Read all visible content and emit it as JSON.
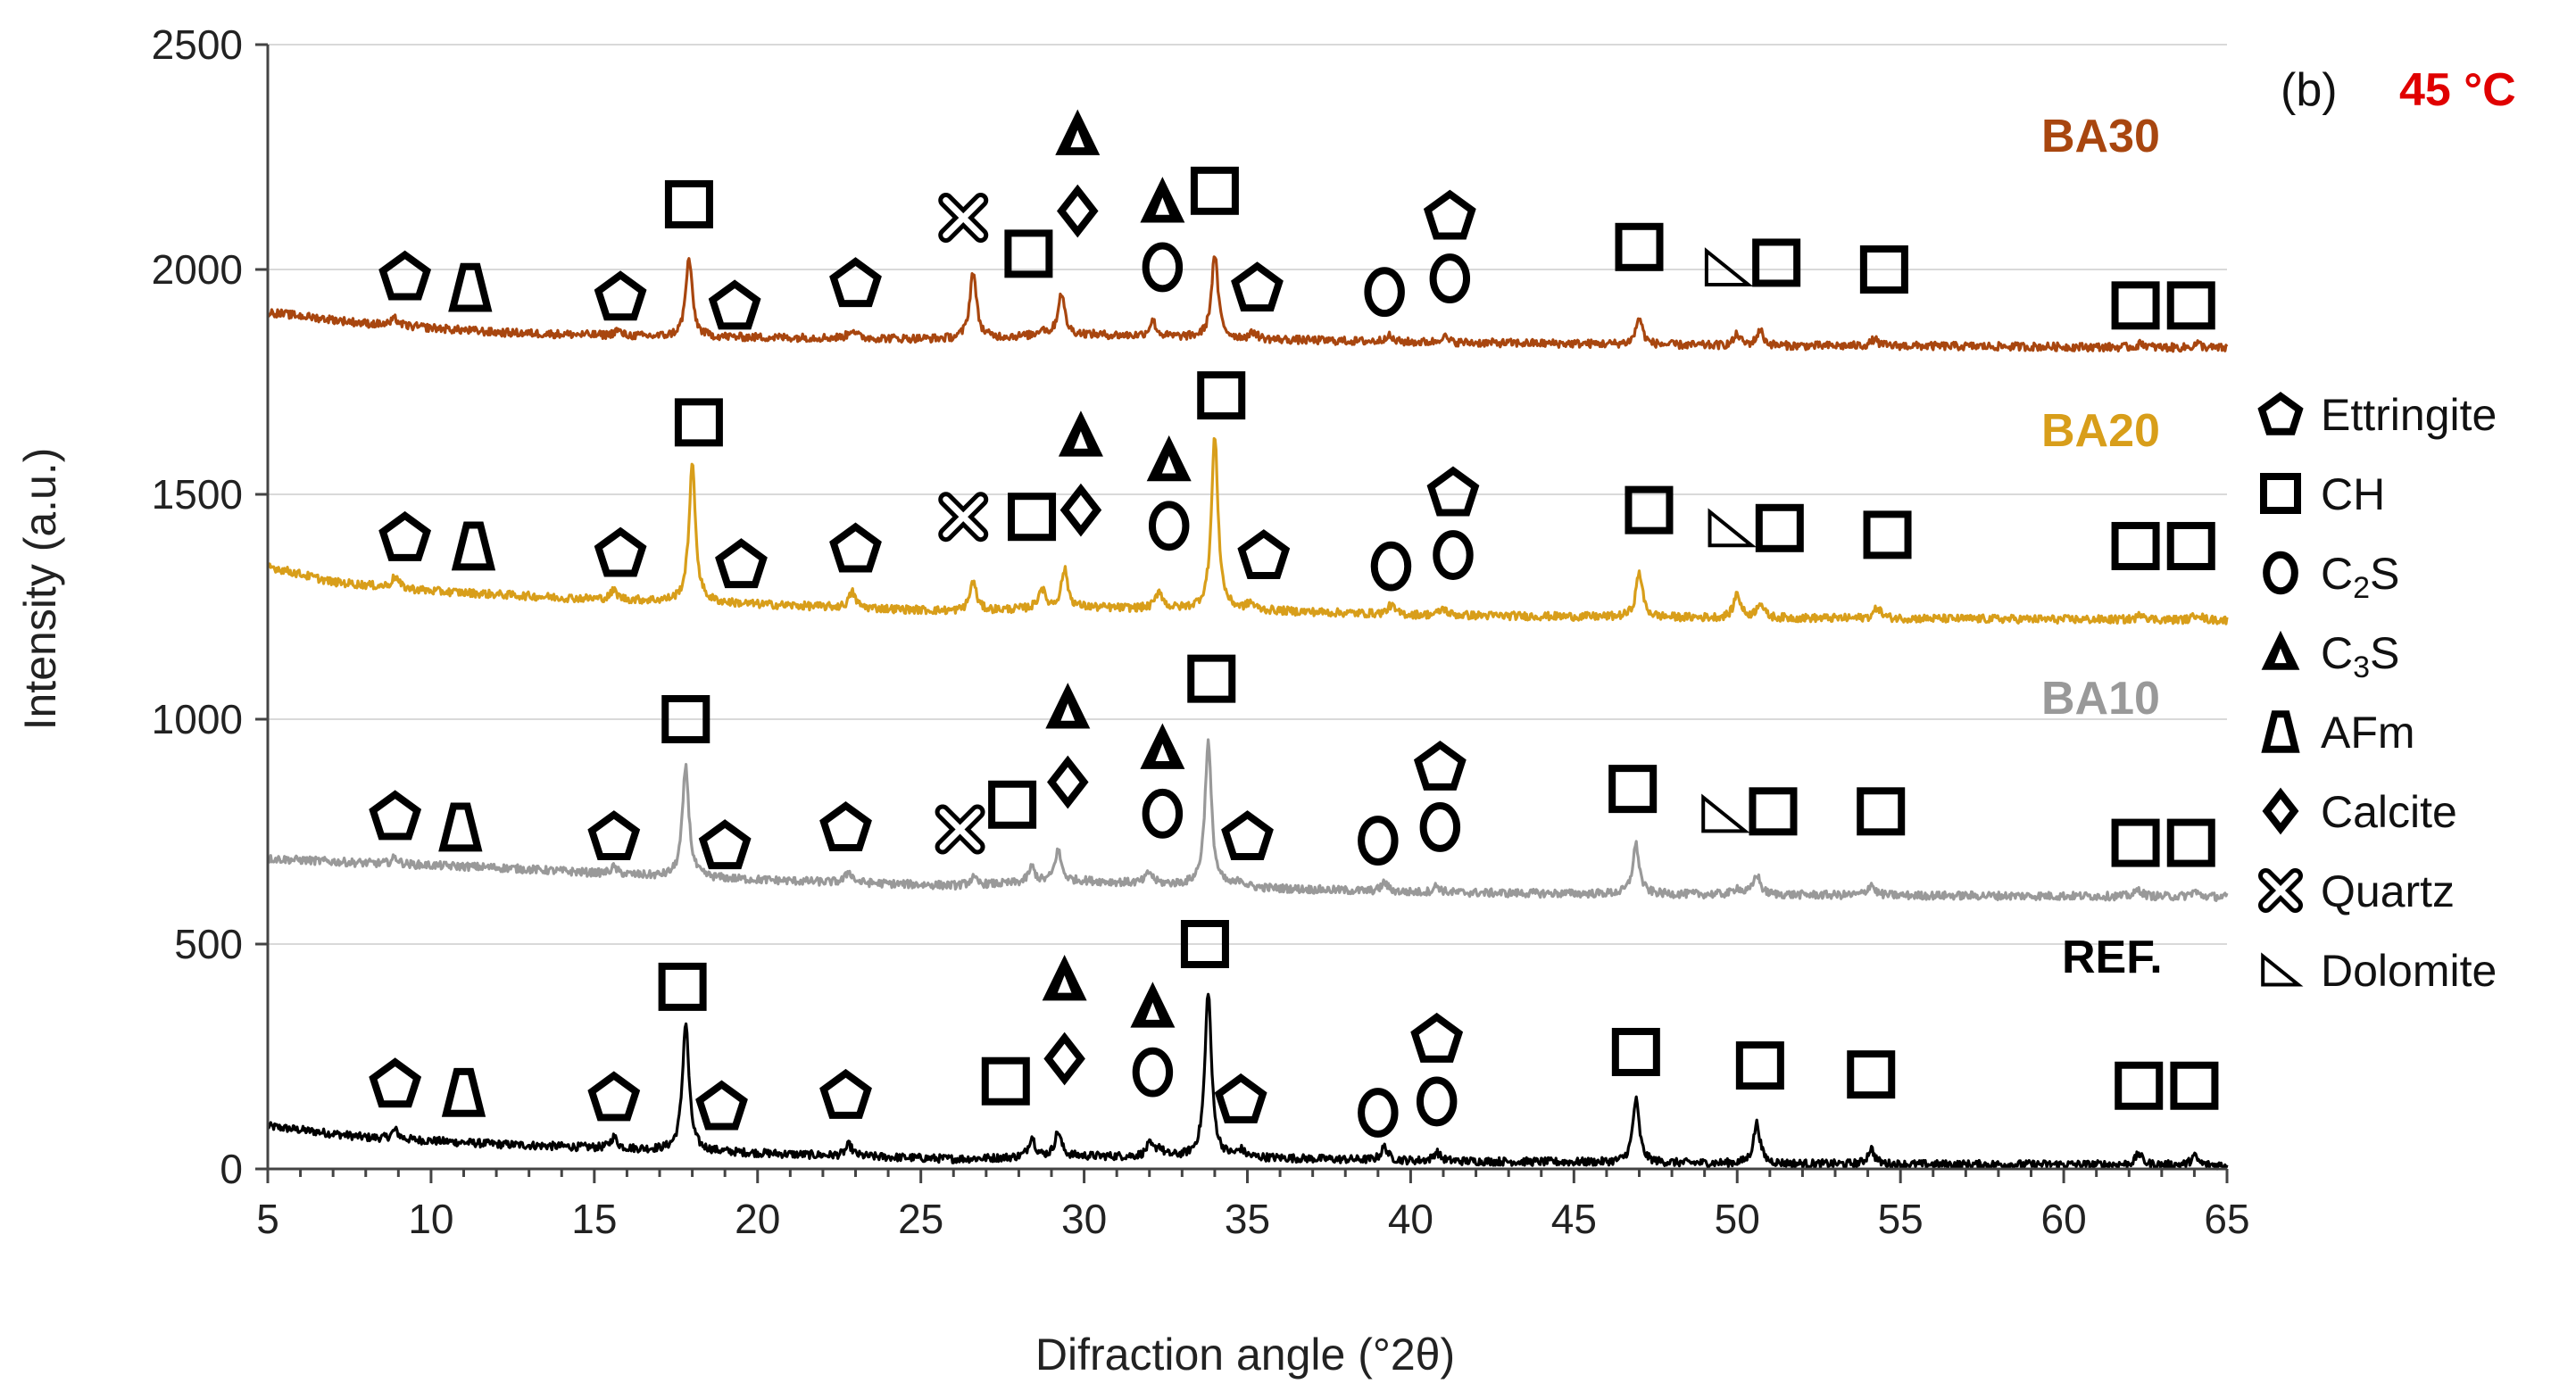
{
  "chart_data": {
    "type": "line",
    "title": "",
    "panel_label": "(b)",
    "temperature_label": "45 °C",
    "xlabel": "Difraction angle (°2θ)",
    "ylabel": "Intensity (a.u.)",
    "xlim": [
      5,
      65
    ],
    "ylim": [
      0,
      2500
    ],
    "x_ticks": [
      "5",
      "10",
      "15",
      "20",
      "25",
      "30",
      "35",
      "40",
      "45",
      "50",
      "55",
      "60",
      "65"
    ],
    "y_ticks": [
      "0",
      "500",
      "1000",
      "1500",
      "2000",
      "2500"
    ],
    "grid": "horizontal",
    "colors": {
      "REF.": "#000000",
      "BA10": "#999999",
      "BA20": "#D89E1A",
      "BA30": "#A8460F",
      "temperature": "#E00000"
    },
    "series": [
      {
        "name": "REF.",
        "baseline": [
          [
            5,
            95
          ],
          [
            8,
            70
          ],
          [
            12,
            55
          ],
          [
            17,
            42
          ],
          [
            22,
            30
          ],
          [
            26,
            22
          ],
          [
            30,
            28
          ],
          [
            35,
            25
          ],
          [
            40,
            18
          ],
          [
            45,
            15
          ],
          [
            50,
            12
          ],
          [
            55,
            10
          ],
          [
            60,
            10
          ],
          [
            65,
            8
          ]
        ],
        "peaks": [
          [
            8.9,
            20
          ],
          [
            15.6,
            25
          ],
          [
            17.8,
            285
          ],
          [
            22.8,
            25
          ],
          [
            28.4,
            45
          ],
          [
            29.2,
            55
          ],
          [
            32.0,
            25
          ],
          [
            32.3,
            20
          ],
          [
            33.8,
            370
          ],
          [
            34.8,
            15
          ],
          [
            39.2,
            30
          ],
          [
            40.8,
            20
          ],
          [
            46.9,
            140
          ],
          [
            50.6,
            90
          ],
          [
            54.1,
            35
          ],
          [
            62.3,
            25
          ],
          [
            64.0,
            20
          ]
        ]
      },
      {
        "name": "BA10",
        "baseline": [
          [
            5,
            690
          ],
          [
            8,
            680
          ],
          [
            12,
            670
          ],
          [
            17,
            650
          ],
          [
            22,
            638
          ],
          [
            26,
            630
          ],
          [
            30,
            640
          ],
          [
            35,
            625
          ],
          [
            40,
            615
          ],
          [
            45,
            612
          ],
          [
            50,
            610
          ],
          [
            55,
            608
          ],
          [
            60,
            607
          ],
          [
            65,
            605
          ]
        ],
        "peaks": [
          [
            8.9,
            15
          ],
          [
            15.6,
            15
          ],
          [
            17.8,
            245
          ],
          [
            22.8,
            25
          ],
          [
            26.6,
            15
          ],
          [
            28.4,
            35
          ],
          [
            29.2,
            70
          ],
          [
            32.0,
            25
          ],
          [
            33.8,
            320
          ],
          [
            34.8,
            15
          ],
          [
            39.2,
            20
          ],
          [
            40.8,
            15
          ],
          [
            46.9,
            110
          ],
          [
            50.0,
            15
          ],
          [
            50.6,
            45
          ],
          [
            54.1,
            25
          ],
          [
            62.3,
            15
          ],
          [
            64.0,
            12
          ]
        ]
      },
      {
        "name": "BA20",
        "baseline": [
          [
            5,
            1340
          ],
          [
            7,
            1305
          ],
          [
            10,
            1285
          ],
          [
            14,
            1270
          ],
          [
            18,
            1260
          ],
          [
            22,
            1250
          ],
          [
            26,
            1240
          ],
          [
            30,
            1248
          ],
          [
            35,
            1242
          ],
          [
            40,
            1232
          ],
          [
            45,
            1228
          ],
          [
            50,
            1225
          ],
          [
            55,
            1224
          ],
          [
            60,
            1222
          ],
          [
            65,
            1220
          ]
        ],
        "peaks": [
          [
            8.9,
            25
          ],
          [
            15.6,
            20
          ],
          [
            18.0,
            305
          ],
          [
            22.9,
            35
          ],
          [
            26.6,
            65
          ],
          [
            28.7,
            45
          ],
          [
            29.4,
            85
          ],
          [
            32.3,
            40
          ],
          [
            34.0,
            385
          ],
          [
            35.1,
            15
          ],
          [
            39.4,
            20
          ],
          [
            41.0,
            15
          ],
          [
            47.0,
            100
          ],
          [
            50.0,
            55
          ],
          [
            50.7,
            35
          ],
          [
            54.3,
            25
          ],
          [
            62.4,
            15
          ],
          [
            64.1,
            15
          ]
        ]
      },
      {
        "name": "BA30",
        "baseline": [
          [
            5,
            1905
          ],
          [
            8,
            1880
          ],
          [
            12,
            1860
          ],
          [
            17,
            1850
          ],
          [
            22,
            1848
          ],
          [
            26,
            1845
          ],
          [
            30,
            1855
          ],
          [
            35,
            1845
          ],
          [
            40,
            1838
          ],
          [
            45,
            1835
          ],
          [
            50,
            1830
          ],
          [
            55,
            1830
          ],
          [
            60,
            1828
          ],
          [
            65,
            1825
          ]
        ],
        "peaks": [
          [
            8.9,
            15
          ],
          [
            15.7,
            12
          ],
          [
            17.9,
            175
          ],
          [
            22.9,
            20
          ],
          [
            26.6,
            150
          ],
          [
            28.7,
            15
          ],
          [
            29.3,
            95
          ],
          [
            32.1,
            35
          ],
          [
            34.0,
            185
          ],
          [
            35.2,
            15
          ],
          [
            39.3,
            15
          ],
          [
            41.0,
            15
          ],
          [
            47.0,
            60
          ],
          [
            50.0,
            25
          ],
          [
            50.7,
            35
          ],
          [
            54.2,
            15
          ],
          [
            62.4,
            10
          ],
          [
            64.1,
            10
          ]
        ]
      }
    ],
    "series_labels": [
      {
        "text": "BA30",
        "color": "#A8460F"
      },
      {
        "text": "BA20",
        "color": "#D89E1A"
      },
      {
        "text": "BA10",
        "color": "#999999"
      },
      {
        "text": "REF.",
        "color": "#000000"
      }
    ],
    "legend": {
      "position": "right",
      "entries": [
        {
          "symbol": "pentagon",
          "label": "Ettringite"
        },
        {
          "symbol": "square",
          "label": "CH"
        },
        {
          "symbol": "circle",
          "label": "C2S",
          "base": "C",
          "sub": "2",
          "tail": "S"
        },
        {
          "symbol": "triangle",
          "label": "C3S",
          "base": "C",
          "sub": "3",
          "tail": "S"
        },
        {
          "symbol": "trapezoid",
          "label": "AFm"
        },
        {
          "symbol": "diamond",
          "label": "Calcite"
        },
        {
          "symbol": "quartz-x",
          "label": "Quartz"
        },
        {
          "symbol": "right-triangle",
          "label": "Dolomite"
        }
      ]
    },
    "phase_markers": [
      {
        "series": "REF.",
        "marks": [
          {
            "symbol": "pentagon",
            "x": 8.9,
            "y": 190
          },
          {
            "symbol": "trapezoid",
            "x": 11.0,
            "y": 170
          },
          {
            "symbol": "pentagon",
            "x": 15.6,
            "y": 160
          },
          {
            "symbol": "square",
            "x": 17.7,
            "y": 405
          },
          {
            "symbol": "pentagon",
            "x": 18.9,
            "y": 140
          },
          {
            "symbol": "pentagon",
            "x": 22.7,
            "y": 165
          },
          {
            "symbol": "square",
            "x": 27.6,
            "y": 195
          },
          {
            "symbol": "triangle",
            "x": 29.4,
            "y": 420
          },
          {
            "symbol": "diamond",
            "x": 29.4,
            "y": 245
          },
          {
            "symbol": "triangle",
            "x": 32.1,
            "y": 360
          },
          {
            "symbol": "circle",
            "x": 32.1,
            "y": 215
          },
          {
            "symbol": "square",
            "x": 33.7,
            "y": 500
          },
          {
            "symbol": "pentagon",
            "x": 34.8,
            "y": 155
          },
          {
            "symbol": "circle",
            "x": 39.0,
            "y": 125
          },
          {
            "symbol": "pentagon",
            "x": 40.8,
            "y": 290
          },
          {
            "symbol": "circle",
            "x": 40.8,
            "y": 150
          },
          {
            "symbol": "square",
            "x": 46.9,
            "y": 260
          },
          {
            "symbol": "square",
            "x": 50.7,
            "y": 230
          },
          {
            "symbol": "square",
            "x": 54.1,
            "y": 210
          },
          {
            "symbol": "square",
            "x": 62.3,
            "y": 185
          },
          {
            "symbol": "square",
            "x": 64.0,
            "y": 185
          }
        ]
      },
      {
        "series": "BA10",
        "marks": [
          {
            "symbol": "pentagon",
            "x": 8.9,
            "y": 785
          },
          {
            "symbol": "trapezoid",
            "x": 10.9,
            "y": 760
          },
          {
            "symbol": "pentagon",
            "x": 15.6,
            "y": 740
          },
          {
            "symbol": "square",
            "x": 17.8,
            "y": 1000
          },
          {
            "symbol": "pentagon",
            "x": 19.0,
            "y": 720
          },
          {
            "symbol": "pentagon",
            "x": 22.7,
            "y": 760
          },
          {
            "symbol": "quartz-x",
            "x": 26.2,
            "y": 755
          },
          {
            "symbol": "square",
            "x": 27.8,
            "y": 810
          },
          {
            "symbol": "triangle",
            "x": 29.5,
            "y": 1025
          },
          {
            "symbol": "diamond",
            "x": 29.5,
            "y": 860
          },
          {
            "symbol": "triangle",
            "x": 32.4,
            "y": 935
          },
          {
            "symbol": "circle",
            "x": 32.4,
            "y": 790
          },
          {
            "symbol": "square",
            "x": 33.9,
            "y": 1090
          },
          {
            "symbol": "pentagon",
            "x": 35.0,
            "y": 740
          },
          {
            "symbol": "circle",
            "x": 39.0,
            "y": 730
          },
          {
            "symbol": "pentagon",
            "x": 40.9,
            "y": 895
          },
          {
            "symbol": "circle",
            "x": 40.9,
            "y": 760
          },
          {
            "symbol": "square",
            "x": 46.8,
            "y": 845
          },
          {
            "symbol": "right-triangle",
            "x": 49.6,
            "y": 790
          },
          {
            "symbol": "square",
            "x": 51.1,
            "y": 795
          },
          {
            "symbol": "square",
            "x": 54.4,
            "y": 795
          },
          {
            "symbol": "square",
            "x": 62.2,
            "y": 725
          },
          {
            "symbol": "square",
            "x": 63.9,
            "y": 725
          }
        ]
      },
      {
        "series": "BA20",
        "marks": [
          {
            "symbol": "pentagon",
            "x": 9.2,
            "y": 1405
          },
          {
            "symbol": "trapezoid",
            "x": 11.3,
            "y": 1385
          },
          {
            "symbol": "pentagon",
            "x": 15.8,
            "y": 1370
          },
          {
            "symbol": "square",
            "x": 18.2,
            "y": 1660
          },
          {
            "symbol": "pentagon",
            "x": 19.5,
            "y": 1345
          },
          {
            "symbol": "pentagon",
            "x": 23.0,
            "y": 1380
          },
          {
            "symbol": "quartz-x",
            "x": 26.3,
            "y": 1450
          },
          {
            "symbol": "square",
            "x": 28.4,
            "y": 1450
          },
          {
            "symbol": "triangle",
            "x": 29.9,
            "y": 1630
          },
          {
            "symbol": "diamond",
            "x": 29.9,
            "y": 1465
          },
          {
            "symbol": "triangle",
            "x": 32.6,
            "y": 1575
          },
          {
            "symbol": "circle",
            "x": 32.6,
            "y": 1430
          },
          {
            "symbol": "square",
            "x": 34.2,
            "y": 1720
          },
          {
            "symbol": "pentagon",
            "x": 35.5,
            "y": 1365
          },
          {
            "symbol": "circle",
            "x": 39.4,
            "y": 1340
          },
          {
            "symbol": "pentagon",
            "x": 41.3,
            "y": 1505
          },
          {
            "symbol": "circle",
            "x": 41.3,
            "y": 1365
          },
          {
            "symbol": "square",
            "x": 47.3,
            "y": 1465
          },
          {
            "symbol": "right-triangle",
            "x": 49.8,
            "y": 1425
          },
          {
            "symbol": "square",
            "x": 51.3,
            "y": 1425
          },
          {
            "symbol": "square",
            "x": 54.6,
            "y": 1410
          },
          {
            "symbol": "square",
            "x": 62.2,
            "y": 1385
          },
          {
            "symbol": "square",
            "x": 63.9,
            "y": 1385
          }
        ]
      },
      {
        "series": "BA30",
        "marks": [
          {
            "symbol": "pentagon",
            "x": 9.2,
            "y": 1985
          },
          {
            "symbol": "trapezoid",
            "x": 11.2,
            "y": 1960
          },
          {
            "symbol": "pentagon",
            "x": 15.8,
            "y": 1940
          },
          {
            "symbol": "square",
            "x": 17.9,
            "y": 2145
          },
          {
            "symbol": "pentagon",
            "x": 19.3,
            "y": 1920
          },
          {
            "symbol": "pentagon",
            "x": 23.0,
            "y": 1970
          },
          {
            "symbol": "quartz-x",
            "x": 26.3,
            "y": 2115
          },
          {
            "symbol": "square",
            "x": 28.3,
            "y": 2035
          },
          {
            "symbol": "triangle",
            "x": 29.8,
            "y": 2300
          },
          {
            "symbol": "diamond",
            "x": 29.8,
            "y": 2130
          },
          {
            "symbol": "triangle",
            "x": 32.4,
            "y": 2150
          },
          {
            "symbol": "circle",
            "x": 32.4,
            "y": 2005
          },
          {
            "symbol": "square",
            "x": 34.0,
            "y": 2175
          },
          {
            "symbol": "pentagon",
            "x": 35.3,
            "y": 1960
          },
          {
            "symbol": "circle",
            "x": 39.2,
            "y": 1950
          },
          {
            "symbol": "pentagon",
            "x": 41.2,
            "y": 2120
          },
          {
            "symbol": "circle",
            "x": 41.2,
            "y": 1980
          },
          {
            "symbol": "square",
            "x": 47.0,
            "y": 2050
          },
          {
            "symbol": "right-triangle",
            "x": 49.7,
            "y": 2005
          },
          {
            "symbol": "square",
            "x": 51.2,
            "y": 2015
          },
          {
            "symbol": "square",
            "x": 54.5,
            "y": 2000
          },
          {
            "symbol": "square",
            "x": 62.2,
            "y": 1920
          },
          {
            "symbol": "square",
            "x": 63.9,
            "y": 1920
          }
        ]
      }
    ]
  }
}
